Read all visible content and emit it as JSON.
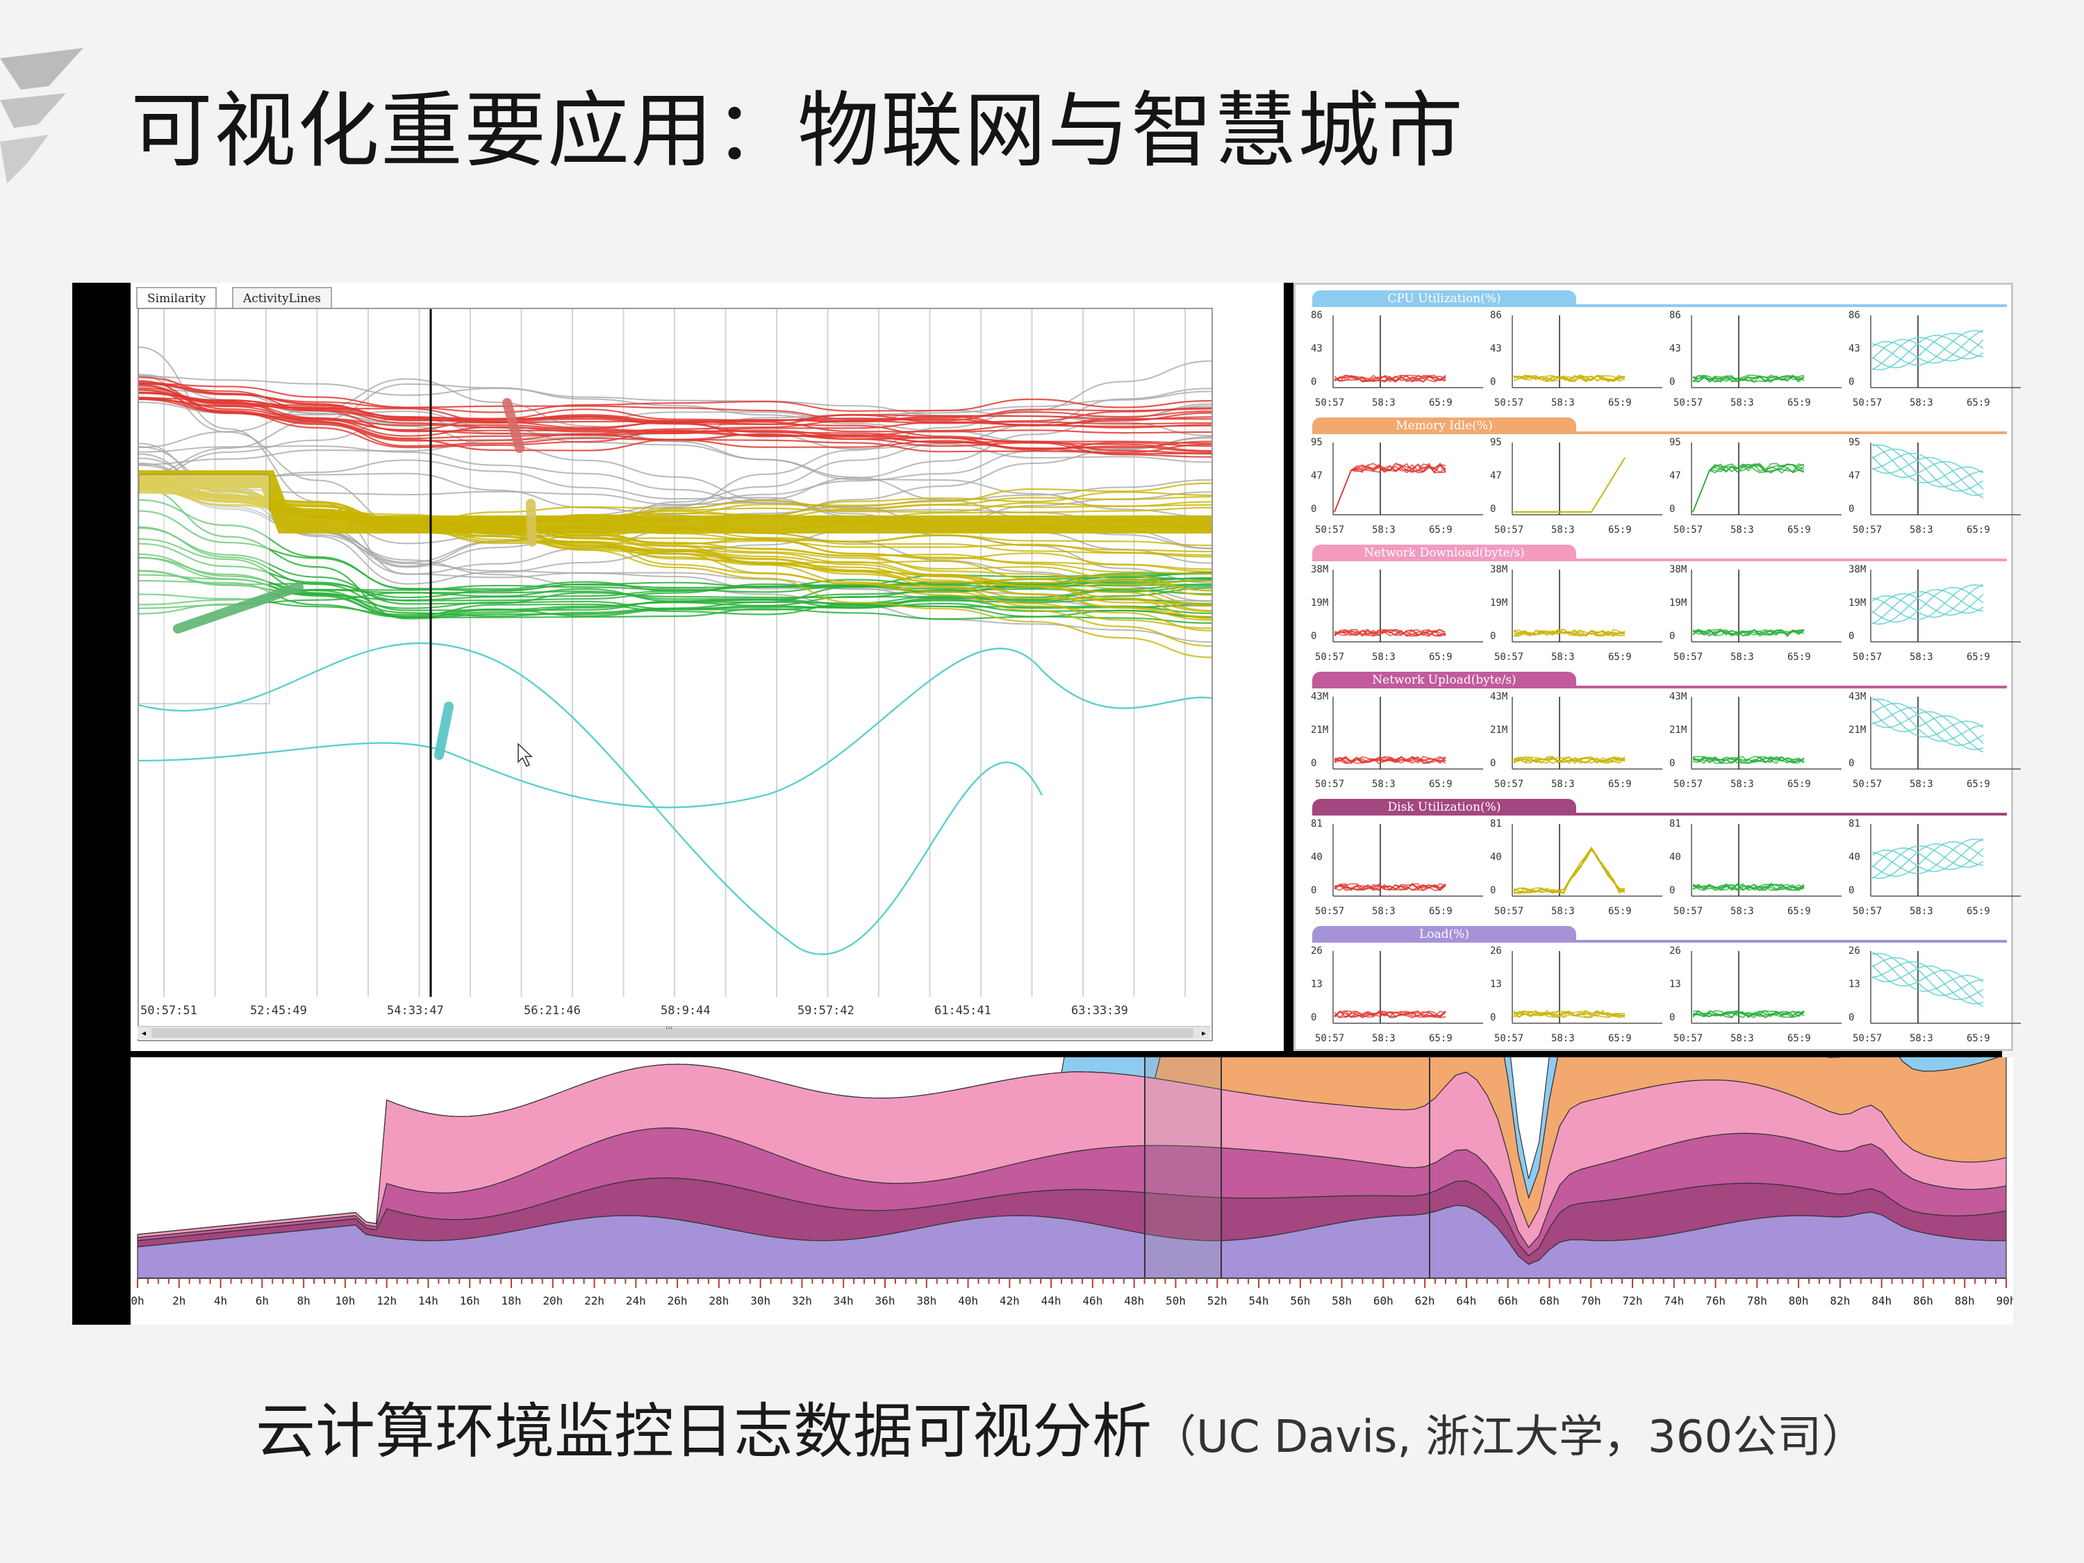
{
  "slide": {
    "title": "可视化重要应用：物联网与智慧城市",
    "caption_main": "云计算环境监控日志数据可视分析",
    "caption_paren": "（UC Davis, 浙江大学，360公司）"
  },
  "left_view": {
    "tabs": [
      {
        "label": "Similarity"
      },
      {
        "label": "ActivityLines"
      }
    ],
    "time_labels": [
      "50:57:51",
      "52:45:49",
      "54:33:47",
      "56:21:46",
      "58:9:44",
      "59:57:42",
      "61:45:41",
      "63:33:39"
    ],
    "scroll_marker": "'''"
  },
  "metrics": [
    {
      "name": "CPU Utilization(%)",
      "color": "#8ecbf0",
      "y_ticks": [
        "86",
        "43",
        "0"
      ]
    },
    {
      "name": "Memory Idle(%)",
      "color": "#f3a86f",
      "y_ticks": [
        "95",
        "47",
        "0"
      ]
    },
    {
      "name": "Network Download(byte/s)",
      "color": "#f29bbf",
      "y_ticks": [
        "38M",
        "19M",
        "0"
      ]
    },
    {
      "name": "Network Upload(byte/s)",
      "color": "#c25a9c",
      "y_ticks": [
        "43M",
        "21M",
        "0"
      ]
    },
    {
      "name": "Disk Utilization(%)",
      "color": "#a4467f",
      "y_ticks": [
        "81",
        "40",
        "0"
      ]
    },
    {
      "name": "Load(%)",
      "color": "#a592d8",
      "y_ticks": [
        "26",
        "13",
        "0"
      ]
    }
  ],
  "metric_x_ticks": [
    "50:57",
    "58:3",
    "65:9"
  ],
  "cluster_colors": [
    "#e03a32",
    "#c8b400",
    "#2ab03a",
    "#5bcfcf"
  ],
  "timeline": {
    "hour_labels": [
      "0h",
      "2h",
      "4h",
      "6h",
      "8h",
      "10h",
      "12h",
      "14h",
      "16h",
      "18h",
      "20h",
      "22h",
      "24h",
      "26h",
      "28h",
      "30h",
      "32h",
      "34h",
      "36h",
      "38h",
      "40h",
      "42h",
      "44h",
      "46h",
      "48h",
      "50h",
      "52h",
      "54h",
      "56h",
      "58h",
      "60h",
      "62h",
      "64h",
      "66h",
      "68h",
      "70h",
      "72h",
      "74h",
      "76h",
      "78h",
      "80h",
      "82h",
      "84h",
      "86h",
      "88h",
      "90h"
    ]
  }
}
